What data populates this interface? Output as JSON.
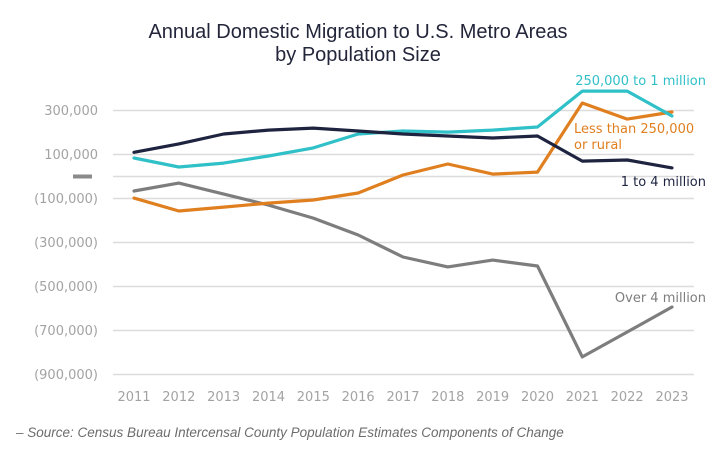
{
  "chart_data": {
    "type": "line",
    "title": "Annual Domestic Migration to U.S. Metro Areas",
    "subtitle": "by Population Size",
    "xlabel": "",
    "ylabel": "",
    "x": [
      "2011",
      "2012",
      "2013",
      "2014",
      "2015",
      "2016",
      "2017",
      "2018",
      "2019",
      "2020",
      "2021",
      "2022",
      "2023"
    ],
    "ylim": [
      -900000,
      300000
    ],
    "yticks": [
      {
        "value": 300000,
        "label": "300,000"
      },
      {
        "value": 100000,
        "label": "100,000"
      },
      {
        "value": 0,
        "label": "—"
      },
      {
        "value": -100000,
        "label": "(100,000)"
      },
      {
        "value": -300000,
        "label": "(300,000)"
      },
      {
        "value": -500000,
        "label": "(500,000)"
      },
      {
        "value": -700000,
        "label": "(700,000)"
      },
      {
        "value": -900000,
        "label": "(900,000)"
      }
    ],
    "grid": true,
    "legend": "inline labels at line ends",
    "series": [
      {
        "name": "250,000 to 1 million",
        "color": "#2fc0c8",
        "values": [
          84000,
          43000,
          61000,
          93000,
          130000,
          193000,
          207000,
          202000,
          211000,
          225000,
          388000,
          388000,
          275000
        ]
      },
      {
        "name": "Less than 250,000 or rural",
        "label_lines": [
          "Less than 250,000",
          "or rural"
        ],
        "color": "#e07f1f",
        "values": [
          -98000,
          -157000,
          -139000,
          -121000,
          -107000,
          -75000,
          7000,
          57000,
          11000,
          20000,
          334000,
          261000,
          293000
        ]
      },
      {
        "name": "1 to 4 million",
        "color": "#1e2440",
        "values": [
          110000,
          148000,
          193000,
          211000,
          220000,
          207000,
          193000,
          184000,
          175000,
          184000,
          70000,
          75000,
          39000
        ]
      },
      {
        "name": "Over 4 million",
        "color": "#7d7d7d",
        "values": [
          -66000,
          -30000,
          -80000,
          -130000,
          -189000,
          -266000,
          -366000,
          -411000,
          -380000,
          -407000,
          -820000,
          -707000,
          -593000
        ]
      }
    ]
  },
  "source": "– Source: Census Bureau Intercensal County Population Estimates Components of Change"
}
